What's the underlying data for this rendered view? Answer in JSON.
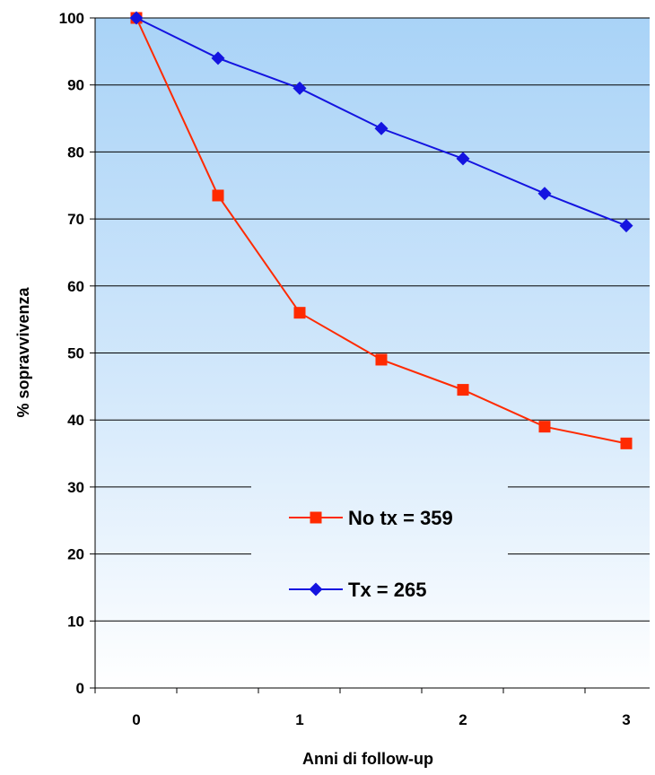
{
  "chart_data": {
    "type": "line",
    "title": "",
    "xlabel": "Anni di follow-up",
    "ylabel": "% sopravvivenza",
    "xlim": [
      -0.25,
      3.25
    ],
    "ylim": [
      0,
      100
    ],
    "y_ticks": [
      0,
      10,
      20,
      30,
      40,
      50,
      60,
      70,
      80,
      90,
      100
    ],
    "x_ticks": [
      0,
      1,
      2,
      3
    ],
    "grid": true,
    "legend_position": "center-bottom",
    "series": [
      {
        "name": "No tx = 359",
        "color": "#ff2a00",
        "marker": "square",
        "x": [
          0,
          0.5,
          1,
          1.5,
          2,
          2.5,
          3
        ],
        "y": [
          100,
          73.5,
          56,
          49,
          44.5,
          39,
          36.5
        ]
      },
      {
        "name": "Tx = 265",
        "color": "#1414e0",
        "marker": "diamond",
        "x": [
          0,
          0.5,
          1,
          1.5,
          2,
          2.5,
          3
        ],
        "y": [
          100,
          94,
          89.5,
          83.5,
          79,
          73.8,
          69
        ]
      }
    ]
  }
}
